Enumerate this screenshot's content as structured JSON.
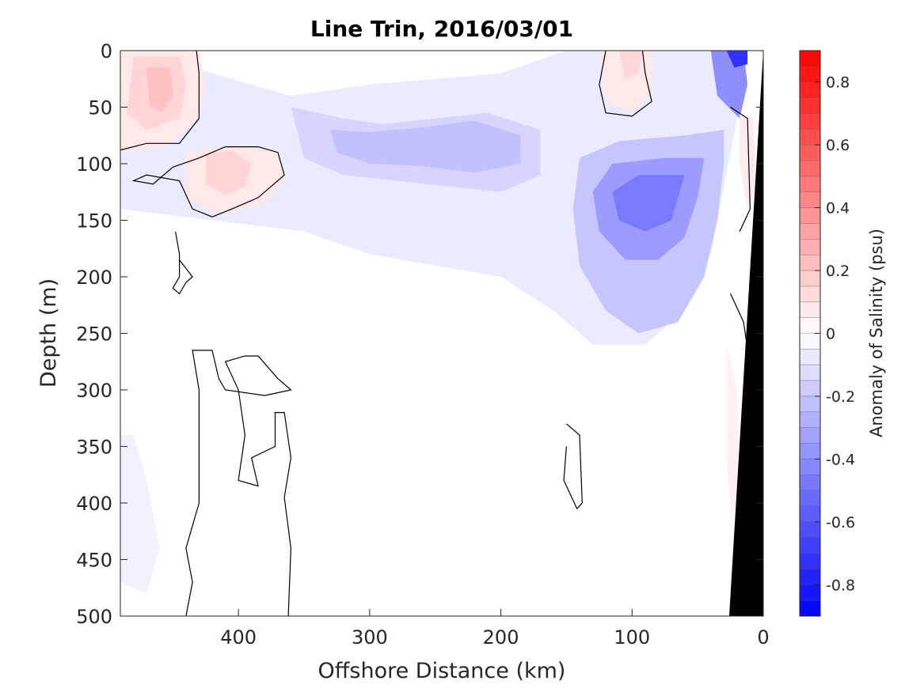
{
  "chart_data": {
    "type": "heatmap",
    "subtype": "filled-contour section",
    "title": "Line Trin, 2016/03/01",
    "xlabel": "Offshore Distance (km)",
    "ylabel": "Depth (m)",
    "colorbar_label": "Anomaly of Salinity (psu)",
    "x_reversed": true,
    "y_reversed": true,
    "xlim": [
      0,
      490
    ],
    "ylim": [
      0,
      500
    ],
    "x_ticks": [
      400,
      300,
      200,
      100,
      0
    ],
    "y_ticks": [
      0,
      50,
      100,
      150,
      200,
      250,
      300,
      350,
      400,
      450,
      500
    ],
    "colorbar": {
      "range": [
        -0.9,
        0.9
      ],
      "levels_step": 0.05,
      "ticks": [
        -0.8,
        -0.6,
        -0.4,
        -0.2,
        0,
        0.2,
        0.4,
        0.6,
        0.8
      ],
      "tick_labels": [
        "-0.8",
        "-0.6",
        "-0.4",
        "-0.2",
        "0",
        "0.2",
        "0.4",
        "0.6",
        "0.8"
      ],
      "colormap": "blue-white-red",
      "low_color": "#0000ff",
      "mid_color": "#ffffff",
      "high_color": "#ff0000"
    },
    "zero_contour": true,
    "land_mask_color": "#000000",
    "features": [
      {
        "name": "salty core near surface",
        "x": 460,
        "y": 35,
        "value": 0.2
      },
      {
        "name": "salty lens",
        "x": 410,
        "y": 105,
        "value": 0.15
      },
      {
        "name": "salty patch",
        "x": 375,
        "y": 100,
        "value": 0.1
      },
      {
        "name": "salty core near coast",
        "x": 98,
        "y": 25,
        "value": 0.12
      },
      {
        "name": "salty sliver at slope",
        "x": 10,
        "y": 90,
        "value": 0.08
      },
      {
        "name": "fresh core",
        "x": 290,
        "y": 85,
        "value": -0.3
      },
      {
        "name": "fresh core",
        "x": 250,
        "y": 80,
        "value": -0.25
      },
      {
        "name": "fresh core",
        "x": 210,
        "y": 75,
        "value": -0.3
      },
      {
        "name": "fresh core subsurface",
        "x": 85,
        "y": 135,
        "value": -0.45
      },
      {
        "name": "fresh surface core at coast",
        "x": 20,
        "y": 5,
        "value": -0.7
      }
    ]
  }
}
